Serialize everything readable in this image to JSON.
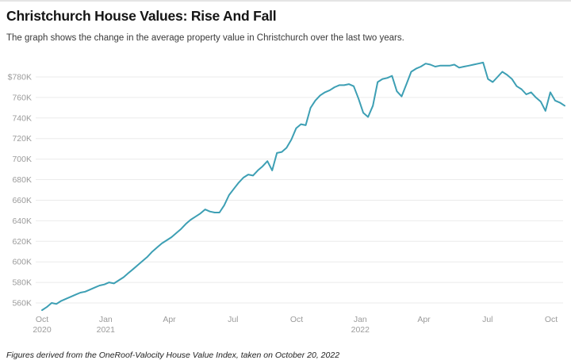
{
  "header": {
    "title": "Christchurch House Values: Rise And Fall",
    "subtitle": "The graph shows the change in the average property value in Christchurch over the last two years."
  },
  "footer": {
    "note": "Figures derived from the OneRoof-Valocity House Value Index, taken on October 20, 2022"
  },
  "chart_data": {
    "type": "line",
    "title": "Christchurch House Values: Rise And Fall",
    "series_name": "Average property value, Christchurch (NZD)",
    "line_color": "#3d9fb4",
    "grid_color": "#ebebeb",
    "axis_label_color": "#9b9b9b",
    "legend_position": "none",
    "grid": "horizontal-only",
    "y_axis": {
      "min": 560000,
      "max": 780000,
      "step": 20000,
      "tick_labels": [
        "$780K",
        "760K",
        "740K",
        "720K",
        "700K",
        "680K",
        "660K",
        "640K",
        "620K",
        "600K",
        "580K",
        "560K"
      ]
    },
    "x_axis": {
      "range": "Oct 2020 to Oct 2022, weekly",
      "tick_labels": [
        {
          "month": "Oct",
          "year": "2020"
        },
        {
          "month": "Jan",
          "year": "2021"
        },
        {
          "month": "Apr"
        },
        {
          "month": "Jul"
        },
        {
          "month": "Oct"
        },
        {
          "month": "Jan",
          "year": "2022"
        },
        {
          "month": "Apr"
        },
        {
          "month": "Jul"
        },
        {
          "month": "Oct"
        }
      ]
    },
    "values": [
      553000,
      556000,
      560000,
      559000,
      562000,
      564000,
      566000,
      568000,
      570000,
      571000,
      573000,
      575000,
      577000,
      578000,
      580000,
      579000,
      582000,
      585000,
      589000,
      593000,
      597000,
      601000,
      605000,
      610000,
      614000,
      618000,
      621000,
      624000,
      628000,
      632000,
      637000,
      641000,
      644000,
      647000,
      651000,
      649000,
      648000,
      648000,
      655000,
      665000,
      671000,
      677000,
      682000,
      685000,
      684000,
      689000,
      693000,
      698000,
      689000,
      706000,
      707000,
      711000,
      719000,
      730000,
      734000,
      733000,
      750000,
      757000,
      762000,
      765000,
      767000,
      770000,
      772000,
      772000,
      773000,
      771000,
      759000,
      745000,
      741000,
      752000,
      775000,
      778000,
      779000,
      781000,
      766000,
      761000,
      773000,
      785000,
      788000,
      790000,
      793000,
      792000,
      790000,
      791000,
      791000,
      791000,
      792000,
      789000,
      790000,
      791000,
      792000,
      793000,
      794000,
      778000,
      775000,
      780000,
      785000,
      782000,
      778000,
      771000,
      768000,
      763000,
      765000,
      760000,
      756000,
      747000,
      765000,
      757000,
      755000,
      752000
    ]
  }
}
